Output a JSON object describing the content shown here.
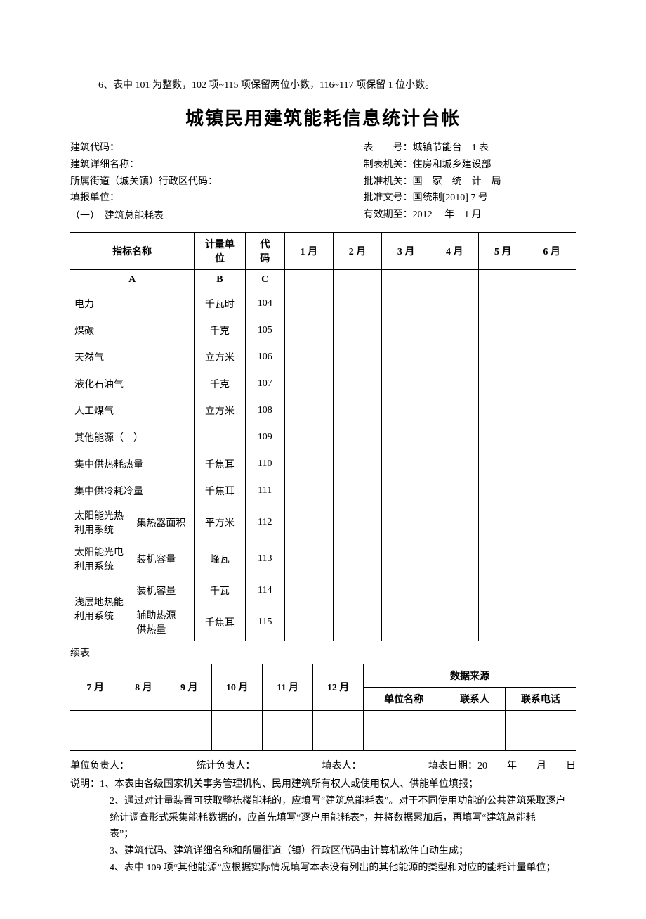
{
  "top_note": "6、表中 101 为整数，102 项~115 项保留两位小数，116~117 项保留 1 位小数。",
  "title": "城镇民用建筑能耗信息统计台帐",
  "meta_left": {
    "l1": "建筑代码：",
    "l2": "建筑详细名称：",
    "l3": "所属街道（城关镇）行政区代码：",
    "l4": "填报单位：",
    "l5": "（一）　建筑总能耗表"
  },
  "meta_right": {
    "r1": "表　　号：城镇节能台　1 表",
    "r2": "制表机关：住房和城乡建设部",
    "r3": "批准机关：国　家　统　计　局",
    "r4": "批准文号：国统制[2010] 7 号",
    "r5": "有效期至：2012　 年　1 月"
  },
  "table1": {
    "col_widths": [
      "11%",
      "11%",
      "9%",
      "7%",
      "8.6%",
      "8.6%",
      "8.6%",
      "8.6%",
      "8.6%",
      "8.6%"
    ],
    "header": {
      "name": "指标名称",
      "unit": "计量单\n位",
      "code": "代\n码",
      "m": [
        "1 月",
        "2 月",
        "3 月",
        "4 月",
        "5 月",
        "6 月"
      ]
    },
    "abc": {
      "a": "A",
      "b": "B",
      "c": "C"
    },
    "rows": [
      {
        "name": "电力",
        "unit": "千瓦时",
        "code": "104"
      },
      {
        "name": "煤碳",
        "unit": "千克",
        "code": "105"
      },
      {
        "name": "天然气",
        "unit": "立方米",
        "code": "106"
      },
      {
        "name": "液化石油气",
        "unit": "千克",
        "code": "107"
      },
      {
        "name": "人工煤气",
        "unit": "立方米",
        "code": "108"
      },
      {
        "name": "其他能源（　）",
        "unit": "",
        "code": "109"
      },
      {
        "name": "集中供热耗热量",
        "unit": "千焦耳",
        "code": "110"
      },
      {
        "name": "集中供冷耗冷量",
        "unit": "千焦耳",
        "code": "111"
      }
    ],
    "grp1": {
      "left": "太阳能光热\n利用系统",
      "sub": "集热器面积",
      "unit": "平方米",
      "code": "112"
    },
    "grp2": {
      "left": "太阳能光电\n利用系统",
      "sub": "装机容量",
      "unit": "峰瓦",
      "code": "113"
    },
    "grp3": {
      "left": "浅层地热能\n利用系统",
      "r1": {
        "sub": "装机容量",
        "unit": "千瓦",
        "code": "114"
      },
      "r2": {
        "sub": "辅助热源\n供热量",
        "unit": "千焦耳",
        "code": "115"
      }
    }
  },
  "cont_label": "续表",
  "table2": {
    "head": [
      "7 月",
      "8 月",
      "9 月",
      "10 月",
      "11 月",
      "12 月"
    ],
    "src_label": "数据来源",
    "src_cols": [
      "单位名称",
      "联系人",
      "联系电话"
    ]
  },
  "footer": {
    "a": "单位负责人：",
    "b": "统计负责人：",
    "c": "填表人：",
    "d": "填表日期：20　　年　　月　　日"
  },
  "notes": {
    "lead": "说明：",
    "n1": "1、本表由各级国家机关事务管理机构、民用建筑所有权人或使用权人、供能单位填报；",
    "n2a": "2、通过对计量装置可获取整栋楼能耗的，应填写“建筑总能耗表”。对于不同使用功能的公共建筑采取逐户",
    "n2b": "统计调查形式采集能耗数据的，应首先填写“逐户用能耗表”，并将数据累加后，再填写“建筑总能耗",
    "n2c": "表”；",
    "n3": "3、建筑代码、建筑详细名称和所属街道（镇）行政区代码由计算机软件自动生成；",
    "n4": "4、表中 109 项“其他能源”应根据实际情况填写本表没有列出的其他能源的类型和对应的能耗计量单位；"
  }
}
